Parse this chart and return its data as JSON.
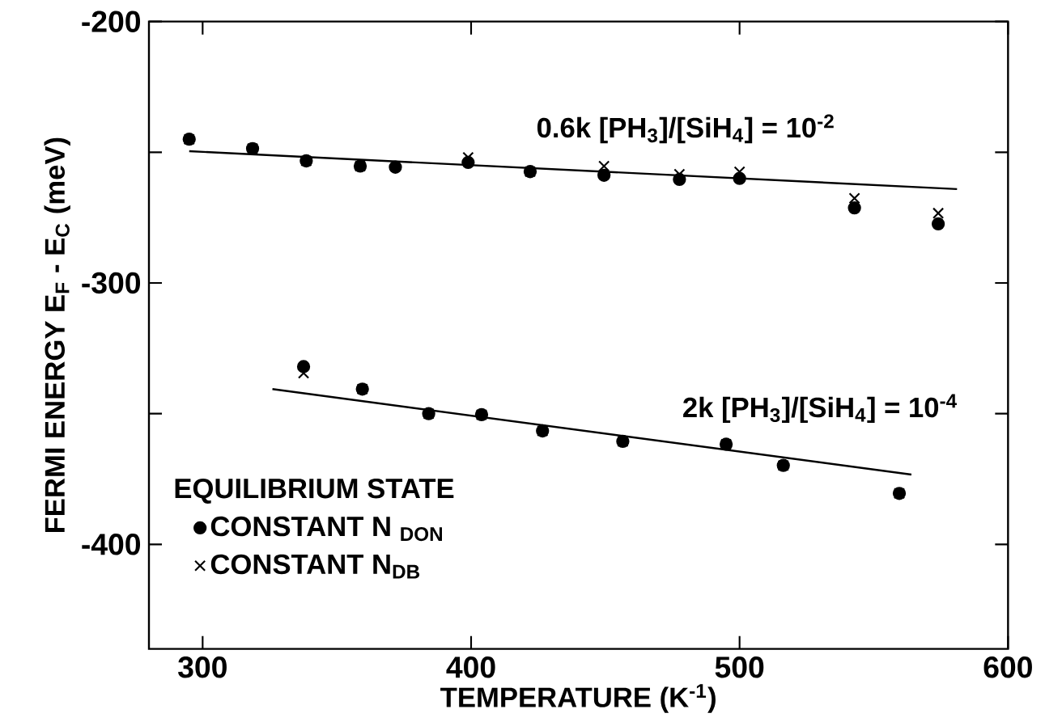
{
  "chart_data": {
    "type": "scatter",
    "xlabel": "TEMPERATURE (K$^{-1}$)",
    "ylabel": "FERMI ENERGY  E$_{F}$ - E$_{C}$  (meV)",
    "legend_title": "EQUILIBRIUM STATE",
    "legend": "bottom left",
    "xlim": [
      280,
      600
    ],
    "ylim": [
      -440,
      -200
    ],
    "xticks": [
      300,
      400,
      500,
      600
    ],
    "yticks": [
      -200,
      {
        "value": -250,
        "label": null
      },
      -300,
      {
        "value": -350,
        "label": null
      },
      -400
    ],
    "annotations": [
      {
        "text": "0.6k   [PH$_{3}$]/[SiH$_{4}$] = 10$^{-2}$",
        "x": 480,
        "y": -261
      },
      {
        "text": "2k     [PH$_{3}$]/[SiH$_{4}$] = 10$^{-4}$",
        "x": 530,
        "y": -368
      }
    ],
    "series": [
      {
        "name": "CONSTANT N $_{DON}$",
        "marker": "circle",
        "color": "#000000",
        "x": [
          295,
          318.6,
          338.6,
          358.7,
          371.8,
          398.9,
          422,
          449.5,
          477.6,
          500,
          542.8,
          574,
          337.6,
          359.5,
          384.2,
          403.9,
          426.6,
          456.5,
          495,
          516.3,
          559.5
        ],
        "values": [
          -245,
          -248.6,
          -253.3,
          -255.3,
          -255.7,
          -253.9,
          -257.4,
          -258.8,
          -260.4,
          -260,
          -271.3,
          -277.4,
          -332,
          -340.6,
          -350,
          -350.4,
          -356.6,
          -360.6,
          -361.7,
          -369.8,
          -380.5
        ]
      },
      {
        "name": "CONSTANT N$_{DB}$",
        "marker": "cross",
        "color": "#000000",
        "x": [
          295,
          318.6,
          338.6,
          358.7,
          398.9,
          422,
          449.5,
          477.6,
          500,
          542.8,
          574,
          337.6,
          359.5,
          384.2,
          403.9,
          426.6,
          456.5,
          495,
          516.3,
          559.5
        ],
        "values": [
          -245,
          -248.6,
          -253.3,
          -255.3,
          -252,
          -257.4,
          -255.3,
          -258.4,
          -257.5,
          -267.6,
          -273.3,
          -334.5,
          -340.6,
          -350,
          -350.4,
          -356.6,
          -360.6,
          -361.7,
          -369.8,
          -380.5
        ]
      },
      {
        "type": "line",
        "marker": "none",
        "color": "#000000",
        "x": [
          295,
          581
        ],
        "values": [
          -249.6,
          -264.1
        ]
      },
      {
        "type": "line",
        "marker": "none",
        "color": "#000000",
        "x": [
          326,
          564
        ],
        "values": [
          -340.6,
          -373.3
        ]
      }
    ]
  }
}
